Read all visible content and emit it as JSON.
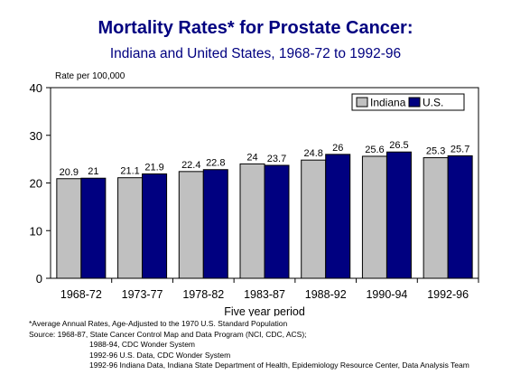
{
  "chart_data": {
    "type": "bar",
    "title": "Mortality Rates* for Prostate Cancer:",
    "subtitle": "Indiana and United States, 1968-72 to 1992-96",
    "ylabel": "Rate per 100,000",
    "xlabel": "Five year period",
    "ylim": [
      0,
      40
    ],
    "yticks": [
      0,
      10,
      20,
      30,
      40
    ],
    "categories": [
      "1968-72",
      "1973-77",
      "1978-82",
      "1983-87",
      "1988-92",
      "1990-94",
      "1992-96"
    ],
    "series": [
      {
        "name": "Indiana",
        "color": "#c0c0c0",
        "values": [
          20.9,
          21.1,
          22.4,
          24,
          24.8,
          25.6,
          25.3
        ]
      },
      {
        "name": "U.S.",
        "color": "#000080",
        "values": [
          21,
          21.9,
          22.8,
          23.7,
          26,
          26.5,
          25.7
        ]
      }
    ],
    "grid": false,
    "legend": "top-right"
  },
  "footnotes": [
    "*Average Annual Rates, Age-Adjusted to the 1970 U.S. Standard Population",
    "Source:   1968-87, State Cancer Control Map and Data Program (NCI, CDC, ACS);",
    "1988-94, CDC Wonder System",
    "1992-96 U.S. Data, CDC Wonder System",
    "1992-96 Indiana Data, Indiana State Department of Health, Epidemiology Resource Center, Data Analysis Team"
  ]
}
